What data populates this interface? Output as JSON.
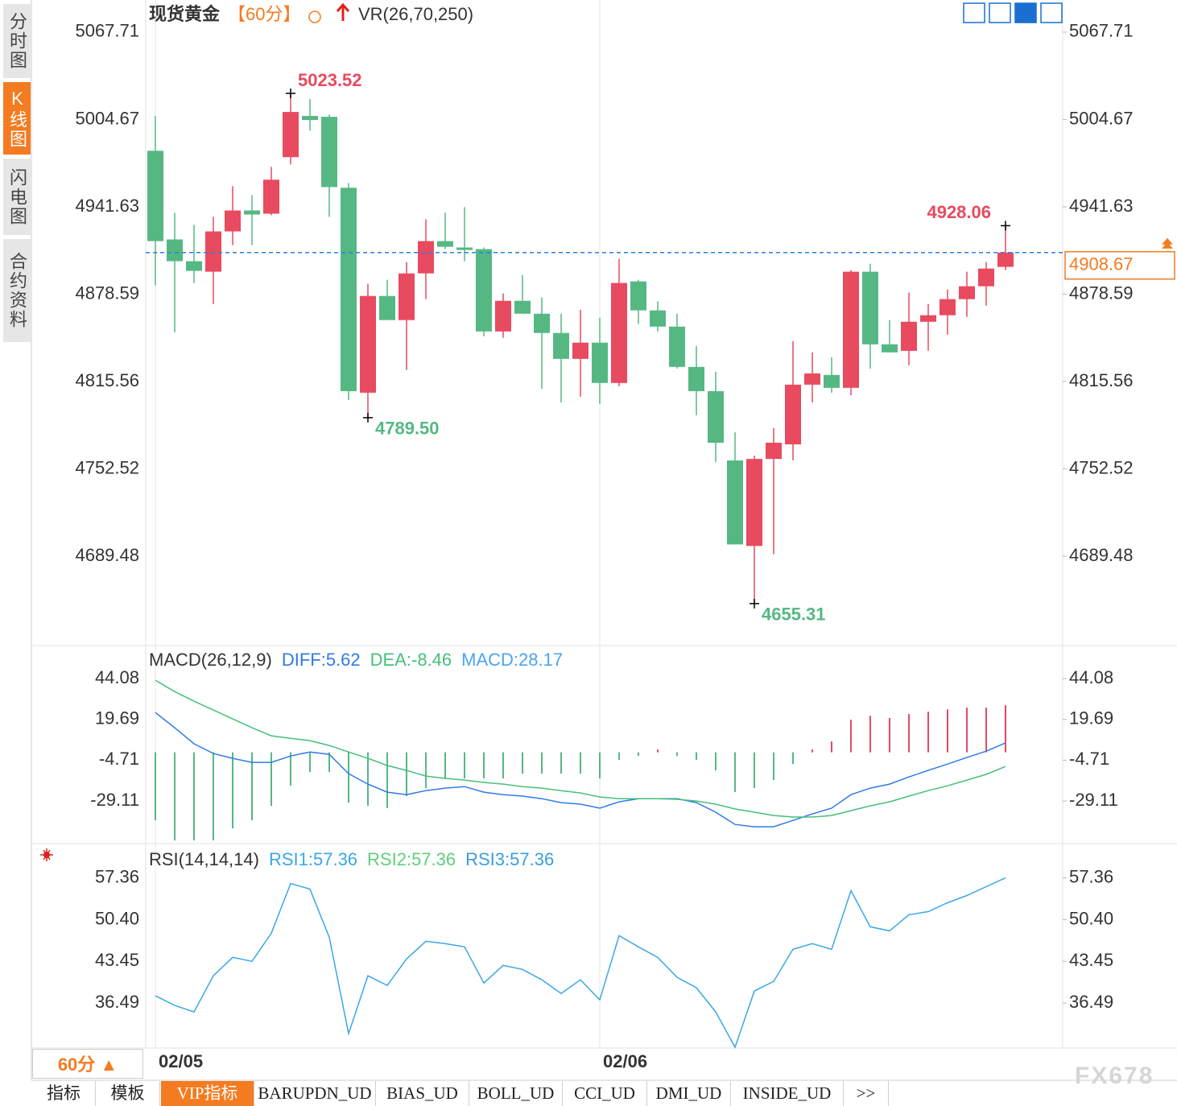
{
  "sidebar_tabs": [
    "分时图",
    "K线图",
    "闪电图",
    "合约资料"
  ],
  "header": {
    "title": "现货黄金",
    "period": "【60分】",
    "indicator": "VR(26,70,250)"
  },
  "chart_data": [
    {
      "type": "candlestick",
      "categories": [
        "02/05",
        null,
        null,
        null,
        null,
        null,
        null,
        null,
        null,
        null,
        null,
        null,
        null,
        null,
        null,
        null,
        null,
        null,
        null,
        null,
        null,
        null,
        null,
        "02/06",
        null,
        null,
        null,
        null,
        null,
        null,
        null,
        null,
        null,
        null,
        null,
        null,
        null,
        null,
        null,
        null,
        null,
        null,
        null,
        null,
        null
      ],
      "open": [
        4982.1,
        4918.1,
        4902.4,
        4894.8,
        4923.9,
        4939.0,
        4936.7,
        4977.5,
        5007.2,
        5006.6,
        4955.4,
        4807.5,
        4877.3,
        4859.9,
        4893.6,
        4916.9,
        4912.3,
        4911.1,
        4851.7,
        4873.8,
        4864.5,
        4850.6,
        4831.9,
        4843.6,
        4814.5,
        4887.8,
        4866.9,
        4855.2,
        4826.1,
        4808.6,
        4758.6,
        4696.9,
        4759.7,
        4770.2,
        4813.3,
        4820.3,
        4811.0,
        4894.8,
        4842.4,
        4837.7,
        4858.7,
        4863.4,
        4875.0,
        4884.3,
        4898.3
      ],
      "high": [
        5007.2,
        4937.3,
        4928.6,
        4934.4,
        4956.5,
        4950.1,
        4970.5,
        5023.52,
        5019.4,
        5008.3,
        4958.8,
        4886.1,
        4889.0,
        4901.8,
        4932.6,
        4937.3,
        4941.4,
        4912.3,
        4879.1,
        4892.5,
        4876.2,
        4864.5,
        4867.4,
        4861.6,
        4904.1,
        4889.0,
        4873.3,
        4864.5,
        4841.2,
        4822.6,
        4778.9,
        4762.1,
        4781.9,
        4844.7,
        4836.6,
        4833.1,
        4896.0,
        4900.6,
        4859.9,
        4879.7,
        4871.5,
        4882.0,
        4894.8,
        4901.8,
        4928.06
      ],
      "low": [
        4884.9,
        4851.1,
        4886.7,
        4871.5,
        4914.0,
        4914.0,
        4935.6,
        4972.2,
        4996.7,
        4934.4,
        4802.2,
        4789.5,
        4859.9,
        4823.8,
        4875.0,
        4911.1,
        4902.4,
        4848.2,
        4847.1,
        4864.5,
        4810.4,
        4800.5,
        4804.6,
        4799.3,
        4812.1,
        4857.0,
        4851.7,
        4824.9,
        4791.2,
        4757.4,
        4698.0,
        4655.31,
        4691.0,
        4758.6,
        4800.5,
        4807.5,
        4805.7,
        4824.9,
        4836.6,
        4827.3,
        4837.7,
        4849.4,
        4862.2,
        4870.3,
        4896.0
      ],
      "close": [
        4916.9,
        4902.4,
        4895.4,
        4923.9,
        4939.0,
        4936.1,
        4961.2,
        5010.1,
        5004.3,
        4955.9,
        4808.6,
        4877.3,
        4859.9,
        4893.6,
        4916.9,
        4912.8,
        4910.5,
        4851.7,
        4873.8,
        4864.5,
        4850.6,
        4831.9,
        4843.6,
        4814.5,
        4886.7,
        4866.9,
        4855.2,
        4826.1,
        4808.6,
        4771.4,
        4698.0,
        4759.7,
        4771.4,
        4813.3,
        4821.4,
        4811.0,
        4894.8,
        4842.4,
        4836.6,
        4858.7,
        4863.4,
        4875.0,
        4884.3,
        4897.1,
        4908.67
      ],
      "up_color": "#e84a5f",
      "down_color": "#55b883",
      "last_price_color": "#2a80e0",
      "ylim": [
        4625,
        5088
      ],
      "yticks": [
        5067.71,
        5004.67,
        4941.63,
        4878.59,
        4815.56,
        4752.52,
        4689.48
      ],
      "annotations": [
        {
          "value": 5023.52,
          "label": "5023.52"
        },
        {
          "value": 4789.5,
          "label": "4789.50"
        },
        {
          "value": 4655.31,
          "label": "4655.31"
        },
        {
          "value": 4928.06,
          "label": "4928.06"
        }
      ]
    },
    {
      "type": "macd",
      "title": "MACD(26,12,9)",
      "ylim": [
        -54.1,
        62.4
      ],
      "yticks": [
        44.08,
        19.69,
        -4.71,
        -29.11
      ],
      "series": [
        {
          "label": "DIFF:5.62",
          "color": "#2f7be6",
          "values": [
            23.8,
            14.7,
            5.1,
            -0.7,
            -3.6,
            -6.0,
            -6.0,
            -2.2,
            0.2,
            -1.2,
            -12.8,
            -19.0,
            -23.8,
            -25.3,
            -22.9,
            -21.4,
            -20.5,
            -23.8,
            -25.3,
            -26.2,
            -27.7,
            -30.1,
            -31.0,
            -33.4,
            -29.6,
            -27.7,
            -27.7,
            -27.7,
            -30.1,
            -35.8,
            -43.1,
            -44.5,
            -44.5,
            -40.7,
            -36.8,
            -33.4,
            -25.3,
            -21.4,
            -19.0,
            -14.7,
            -10.8,
            -7.0,
            -3.1,
            0.7,
            5.62
          ]
        },
        {
          "label": "DEA:-8.46",
          "color": "#45c07a",
          "values": [
            43.1,
            36.3,
            30.6,
            25.3,
            20.0,
            14.7,
            9.9,
            8.4,
            7.0,
            4.1,
            0.2,
            -3.6,
            -7.9,
            -10.8,
            -14.2,
            -15.6,
            -16.6,
            -18.0,
            -19.0,
            -20.5,
            -21.4,
            -22.9,
            -24.3,
            -26.7,
            -27.7,
            -27.7,
            -27.7,
            -28.1,
            -29.1,
            -31.0,
            -33.9,
            -35.8,
            -37.8,
            -38.7,
            -38.7,
            -37.8,
            -34.9,
            -32.0,
            -29.6,
            -26.2,
            -22.9,
            -20.0,
            -16.6,
            -13.2,
            -8.46
          ]
        }
      ],
      "histogram": {
        "label": "MACD:28.17",
        "color": "#4aa6f0",
        "up_color": "#e84a5f",
        "down_color": "#55b883",
        "values": [
          -40.7,
          -52.7,
          -52.7,
          -52.7,
          -45.5,
          -40.7,
          -32.0,
          -20.0,
          -11.8,
          -11.8,
          -30.1,
          -32.0,
          -33.4,
          -26.2,
          -21.4,
          -15.6,
          -15.6,
          -15.6,
          -15.6,
          -12.8,
          -12.8,
          -12.8,
          -12.8,
          -15.6,
          -4.6,
          -2.2,
          1.7,
          -2.2,
          -4.6,
          -10.8,
          -23.8,
          -21.4,
          -16.6,
          -7.0,
          1.7,
          6.5,
          19.5,
          21.9,
          20.5,
          22.9,
          24.3,
          25.7,
          26.7,
          26.7,
          28.17
        ]
      }
    },
    {
      "type": "rsi",
      "title": "RSI(14,14,14)",
      "ylim": [
        29.0,
        62.8
      ],
      "yticks": [
        57.36,
        {
          "value": 50.4,
          "label": "50.40"
        },
        43.45,
        36.49
      ],
      "series": [
        {
          "label": "RSI1:57.36",
          "color": "#3aa7e8",
          "values": [
            37.7,
            36.09,
            35.02,
            41.04,
            44.12,
            43.45,
            48.13,
            56.42,
            55.49,
            47.46,
            31.41,
            41.04,
            39.44,
            43.85,
            46.79,
            46.39,
            45.86,
            39.84,
            42.78,
            42.11,
            40.37,
            38.1,
            40.37,
            37.03,
            47.73,
            45.86,
            44.12,
            40.78,
            39.04,
            35.02,
            29.14,
            38.5,
            40.11,
            45.46,
            46.39,
            45.46,
            55.22,
            49.2,
            48.53,
            51.21,
            51.74,
            53.21,
            54.42,
            55.89,
            57.36
          ]
        },
        {
          "label": "RSI2:57.36",
          "color": "#5fcf7a"
        },
        {
          "label": "RSI3:57.36",
          "color": "#3a9de0"
        }
      ]
    }
  ],
  "footer": {
    "period": "60分 ▲",
    "tabs": [
      "指标",
      "模板",
      "VIP指标",
      "BARUPDN_UD",
      "BIAS_UD",
      "BOLL_UD",
      "CCI_UD",
      "DMI_UD",
      "INSIDE_UD",
      ">>"
    ]
  },
  "watermark": "FX678"
}
